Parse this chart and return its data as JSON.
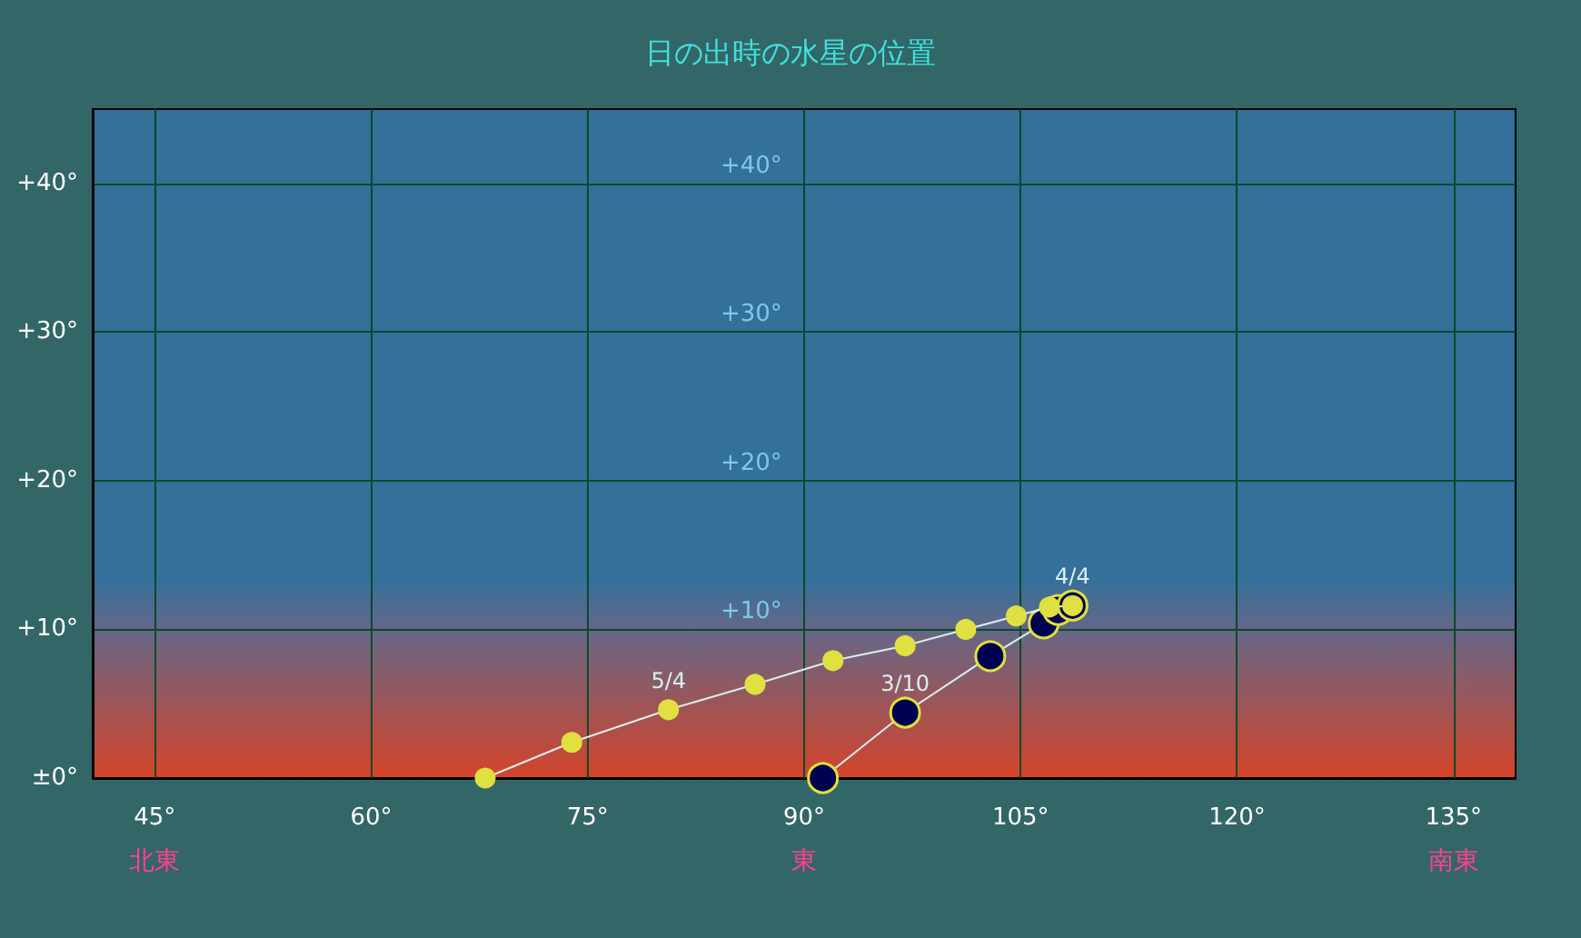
{
  "chart_data": {
    "type": "line",
    "title": "日の出時の水星の位置",
    "xlim": [
      40.7,
      139.3
    ],
    "xticks": [
      {
        "value": 45,
        "label": "45°\n北東"
      },
      {
        "value": 60,
        "label": "60°"
      },
      {
        "value": 75,
        "label": "75°"
      },
      {
        "value": 90,
        "label": "90°\n東"
      },
      {
        "value": 105,
        "label": "105°"
      },
      {
        "value": 120,
        "label": "120°"
      },
      {
        "value": 135,
        "label": "135°\n南東"
      }
    ],
    "ylim": [
      0,
      45
    ],
    "yticks": [
      {
        "value": 0,
        "label": "±0°"
      },
      {
        "value": 10,
        "label": "+10°"
      },
      {
        "value": 20,
        "label": "+20°"
      },
      {
        "value": 30,
        "label": "+30°"
      },
      {
        "value": 40,
        "label": "+40°"
      }
    ],
    "grid": true,
    "marker": "circle",
    "line_style": "solid",
    "series": [
      {
        "color": "#000050",
        "x": [
          91.3,
          97.0,
          102.9,
          106.6,
          107.6,
          108.6
        ],
        "values": [
          0,
          4.4,
          8.2,
          10.4,
          11.3,
          11.6
        ]
      },
      {
        "color": "#e0e040",
        "x": [
          108.6,
          107.0,
          104.7,
          101.2,
          97.0,
          92.0,
          86.6,
          80.6,
          73.9,
          67.9
        ],
        "values": [
          11.6,
          11.5,
          10.9,
          10.0,
          8.9,
          7.9,
          6.3,
          4.6,
          2.4,
          0
        ]
      }
    ],
    "annotations": [
      {
        "text": "3/10",
        "x": 97.0,
        "y": 4.4
      },
      {
        "text": "4/4",
        "x": 108.6,
        "y": 11.6
      },
      {
        "text": "5/4",
        "x": 80.6,
        "y": 4.6
      },
      "+10°",
      "+20°",
      "+30°",
      "+40°"
    ]
  }
}
